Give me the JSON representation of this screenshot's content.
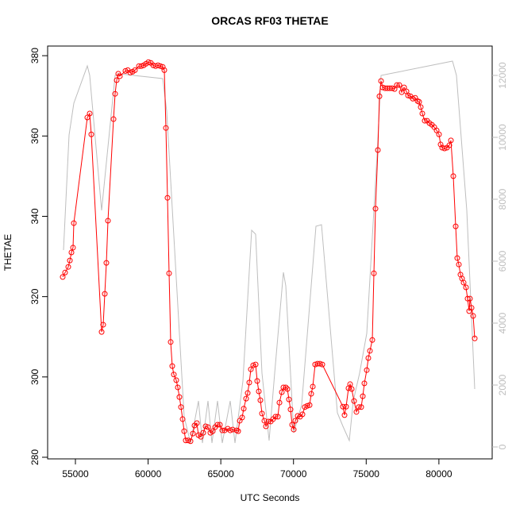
{
  "chart_data": {
    "type": "line",
    "title": "ORCAS RF03 THETAE",
    "xlabel": "UTC Seconds",
    "ylabel": "THETAE",
    "xlim": [
      53089,
      83665
    ],
    "xticks": [
      55000,
      60000,
      65000,
      70000,
      75000,
      80000
    ],
    "ylim": [
      279.6,
      382.4
    ],
    "yticks": [
      280,
      300,
      320,
      340,
      360,
      380
    ],
    "y2lim": [
      -385,
      12949
    ],
    "y2ticks": [
      0,
      2000,
      4000,
      6000,
      8000,
      10000,
      12000
    ],
    "grid": false,
    "series": [
      {
        "color": "#ff0000",
        "markers": true,
        "axis": "y",
        "x": [
          54126,
          54290,
          54509,
          54618,
          54727,
          54836,
          54891,
          55819,
          55983,
          56092,
          56802,
          56911,
          57020,
          57129,
          57239,
          57621,
          57730,
          57839,
          57948,
          58058,
          58440,
          58604,
          58767,
          58931,
          59095,
          59368,
          59532,
          59696,
          59859,
          60023,
          60187,
          60351,
          60515,
          60678,
          60842,
          61006,
          61115,
          61224,
          61333,
          61443,
          61552,
          61661,
          61770,
          61934,
          62043,
          62153,
          62262,
          62371,
          62480,
          62589,
          62753,
          62917,
          63081,
          63190,
          63354,
          63463,
          63627,
          63791,
          63955,
          64118,
          64282,
          64446,
          64610,
          64773,
          64937,
          65101,
          65265,
          65483,
          65647,
          65811,
          66084,
          66193,
          66303,
          66467,
          66576,
          66740,
          66849,
          66958,
          67067,
          67231,
          67394,
          67503,
          67612,
          67722,
          67831,
          67995,
          68104,
          68268,
          68432,
          68596,
          68760,
          68924,
          69033,
          69197,
          69305,
          69469,
          69578,
          69687,
          69797,
          69906,
          70015,
          70124,
          70288,
          70452,
          70616,
          70780,
          70943,
          71107,
          71216,
          71326,
          71489,
          71653,
          71817,
          71981,
          73400,
          73509,
          73618,
          73782,
          73892,
          74001,
          74165,
          74328,
          74492,
          74656,
          74765,
          74874,
          75038,
          75147,
          75257,
          75420,
          75530,
          75639,
          75803,
          75912,
          76021,
          76130,
          76294,
          76458,
          76622,
          76786,
          76950,
          77113,
          77277,
          77441,
          77605,
          77769,
          77878,
          78042,
          78205,
          78369,
          78533,
          78642,
          78751,
          78861,
          79024,
          79188,
          79352,
          79516,
          79680,
          79844,
          80007,
          80117,
          80226,
          80390,
          80554,
          80717,
          80827,
          80991,
          81154,
          81263,
          81372,
          81482,
          81591,
          81700,
          81864,
          81973,
          82082,
          82137,
          82246,
          82355,
          82464
        ],
        "values": [
          324.9,
          326,
          327.4,
          329,
          331,
          332.2,
          338.3,
          364.6,
          365.6,
          360.4,
          311.2,
          313,
          320.7,
          328.4,
          338.9,
          364.2,
          370.5,
          373.9,
          375.5,
          374.9,
          376.2,
          376.4,
          375.8,
          376,
          376.4,
          377.4,
          377.4,
          377.6,
          378,
          378.4,
          378.2,
          377.6,
          377.4,
          377.6,
          377.4,
          377.2,
          376.4,
          362,
          344.6,
          325.8,
          308.7,
          302.7,
          300.6,
          299.2,
          297.4,
          295,
          292.5,
          289.5,
          286.5,
          284.2,
          284.2,
          284,
          285.9,
          287.9,
          288.5,
          285.5,
          285.1,
          286.1,
          287.7,
          287.5,
          286.1,
          286.5,
          287.5,
          288.1,
          288.1,
          286.7,
          286.7,
          287.1,
          286.7,
          286.9,
          286.7,
          286.5,
          289.1,
          289.9,
          292.1,
          294.6,
          296,
          298.6,
          301.9,
          302.9,
          303.1,
          299,
          296.4,
          294.2,
          290.9,
          289.1,
          287.7,
          288.9,
          288.9,
          289.5,
          290.1,
          290.1,
          293.6,
          296.2,
          297.4,
          297.4,
          297,
          294.4,
          291.9,
          288.1,
          286.9,
          289.1,
          290.3,
          290.1,
          290.7,
          292.5,
          292.8,
          293,
          295.8,
          297.6,
          303.1,
          303.3,
          303.3,
          303.1,
          292.6,
          290.5,
          292.6,
          297.2,
          298.2,
          297,
          294,
          291.3,
          292.5,
          292.5,
          295.2,
          298.4,
          301.7,
          304.7,
          306.5,
          309.2,
          325.8,
          341.9,
          356.5,
          369.9,
          373.7,
          372.1,
          371.9,
          371.9,
          371.9,
          371.9,
          371.7,
          372.7,
          372.7,
          370.9,
          372.1,
          371.1,
          370.1,
          369.9,
          369.3,
          369.5,
          368.7,
          368.5,
          367.2,
          365.6,
          363.8,
          363.8,
          363.2,
          362.8,
          362.2,
          361.4,
          360.4,
          357.9,
          357.1,
          356.9,
          357.1,
          357.7,
          358.9,
          350,
          337.5,
          329.6,
          328,
          325.5,
          324.5,
          323.5,
          322.3,
          319.5,
          316.4,
          319.5,
          317.2,
          315.2,
          309.6
        ]
      },
      {
        "color": "#bebebe",
        "markers": false,
        "axis": "y2",
        "x": [
          54181,
          54563,
          54891,
          55819,
          55983,
          56802,
          57730,
          58003,
          61006,
          61279,
          62480,
          62917,
          63463,
          63736,
          64118,
          64391,
          64773,
          65101,
          65647,
          65975,
          66521,
          67121,
          67394,
          67831,
          68322,
          68705,
          69305,
          69469,
          70015,
          70561,
          71544,
          71926,
          73018,
          73400,
          73837,
          74110,
          74547,
          75038,
          75748,
          76021,
          76567,
          80935,
          81208,
          81918,
          82464
        ],
        "values": [
          6359,
          10077,
          11103,
          12308,
          12000,
          7641,
          12000,
          12051,
          11897,
          10846,
          974,
          128,
          1487,
          128,
          1487,
          128,
          1487,
          128,
          1487,
          128,
          2128,
          7000,
          6872,
          2385,
          205,
          2385,
          5641,
          5205,
          462,
          1359,
          7128,
          7179,
          1103,
          667,
          205,
          1487,
          2385,
          3667,
          9436,
          12000,
          12051,
          12462,
          12000,
          7641,
          1872
        ]
      }
    ]
  }
}
